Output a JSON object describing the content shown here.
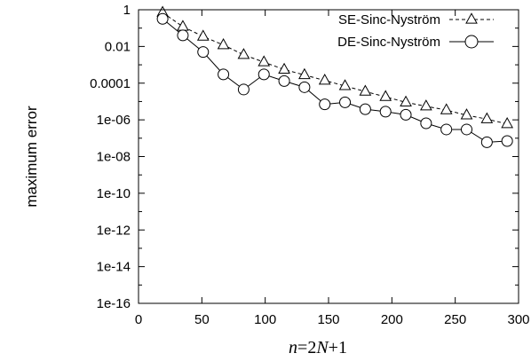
{
  "chart_data": {
    "type": "line",
    "xlabel": "n=2N+1",
    "ylabel": "maximum error",
    "xlim": [
      0,
      300
    ],
    "ylim": [
      1e-16,
      1
    ],
    "y_scale": "log",
    "grid": false,
    "legend_position": "top-right",
    "x_ticks": [
      "0",
      "50",
      "100",
      "150",
      "200",
      "250",
      "300"
    ],
    "y_ticks": [
      "1",
      "0.01",
      "0.0001",
      "1e-06",
      "1e-08",
      "1e-10",
      "1e-12",
      "1e-14",
      "1e-16"
    ],
    "x": [
      19,
      35,
      51,
      67,
      83,
      99,
      115,
      131,
      147,
      163,
      179,
      195,
      211,
      227,
      243,
      259,
      275,
      291
    ],
    "series": [
      {
        "name": "SE-Sinc-Nyström",
        "marker": "triangle",
        "line": "dashed",
        "values": [
          0.7,
          0.12,
          0.035,
          0.012,
          0.0035,
          0.0014,
          0.00055,
          0.00028,
          0.00014,
          7e-05,
          3.5e-05,
          1.8e-05,
          9e-06,
          5.5e-06,
          3.4e-06,
          1.8e-06,
          1.1e-06,
          6e-07
        ]
      },
      {
        "name": "DE-Sinc-Nyström",
        "marker": "circle",
        "line": "solid",
        "values": [
          0.32,
          0.04,
          0.005,
          0.0003,
          4.5e-05,
          0.0003,
          0.00013,
          6e-05,
          7e-06,
          9e-06,
          3.8e-06,
          2.8e-06,
          1.9e-06,
          6.5e-07,
          3e-07,
          3e-07,
          6e-08,
          7e-08
        ]
      }
    ]
  }
}
